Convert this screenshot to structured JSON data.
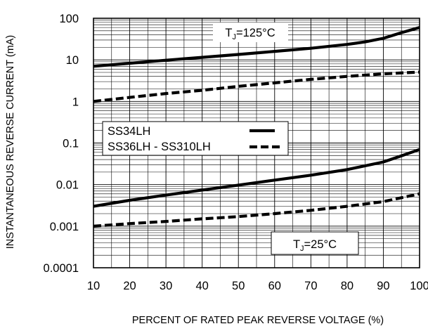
{
  "chart_data": {
    "type": "line",
    "ylabel": "INSTANTANEOUS REVERSE CURRENT (mA)",
    "xlabel": "PERCENT OF RATED PEAK REVERSE VOLTAGE (%)",
    "xlim": [
      10,
      100
    ],
    "ylim": [
      0.0001,
      100
    ],
    "yscale": "log",
    "grid": true,
    "x_ticks": [
      "10",
      "20",
      "30",
      "40",
      "50",
      "60",
      "70",
      "80",
      "90",
      "100"
    ],
    "y_ticks": [
      "0.0001",
      "0.001",
      "0.01",
      "0.1",
      "1",
      "10",
      "100"
    ],
    "legend_placement": "middle-left",
    "legend": [
      {
        "label": "SS34LH",
        "style": "solid"
      },
      {
        "label": "SS36LH - SS310LH",
        "style": "dashed"
      }
    ],
    "annotations": [
      {
        "id": "tj125",
        "text": "TJ=125°C"
      },
      {
        "id": "tj25",
        "text": "TJ=25°C"
      }
    ],
    "series": [
      {
        "device": "SS34LH",
        "condition": "TJ=125°C",
        "style": "solid",
        "x": [
          10,
          20,
          30,
          40,
          50,
          60,
          70,
          80,
          85,
          90,
          95,
          100
        ],
        "y": [
          7,
          8.3,
          9.8,
          11.5,
          13.5,
          16,
          19,
          23.5,
          27,
          33,
          45,
          60
        ]
      },
      {
        "device": "SS36LH - SS310LH",
        "condition": "TJ=125°C",
        "style": "dashed",
        "x": [
          10,
          20,
          30,
          40,
          50,
          60,
          70,
          80,
          90,
          100
        ],
        "y": [
          1.0,
          1.25,
          1.55,
          1.85,
          2.3,
          2.8,
          3.4,
          4.0,
          4.6,
          5.1
        ]
      },
      {
        "device": "SS34LH",
        "condition": "TJ=25°C",
        "style": "solid",
        "x": [
          10,
          20,
          30,
          40,
          50,
          60,
          70,
          80,
          90,
          95,
          100
        ],
        "y": [
          0.003,
          0.0042,
          0.0056,
          0.0074,
          0.0097,
          0.0128,
          0.0168,
          0.023,
          0.035,
          0.049,
          0.07
        ]
      },
      {
        "device": "SS36LH - SS310LH",
        "condition": "TJ=25°C",
        "style": "dashed",
        "x": [
          10,
          20,
          30,
          40,
          50,
          60,
          70,
          80,
          90,
          100
        ],
        "y": [
          0.001,
          0.00115,
          0.0013,
          0.0015,
          0.0017,
          0.002,
          0.0024,
          0.003,
          0.0039,
          0.006
        ]
      }
    ]
  }
}
